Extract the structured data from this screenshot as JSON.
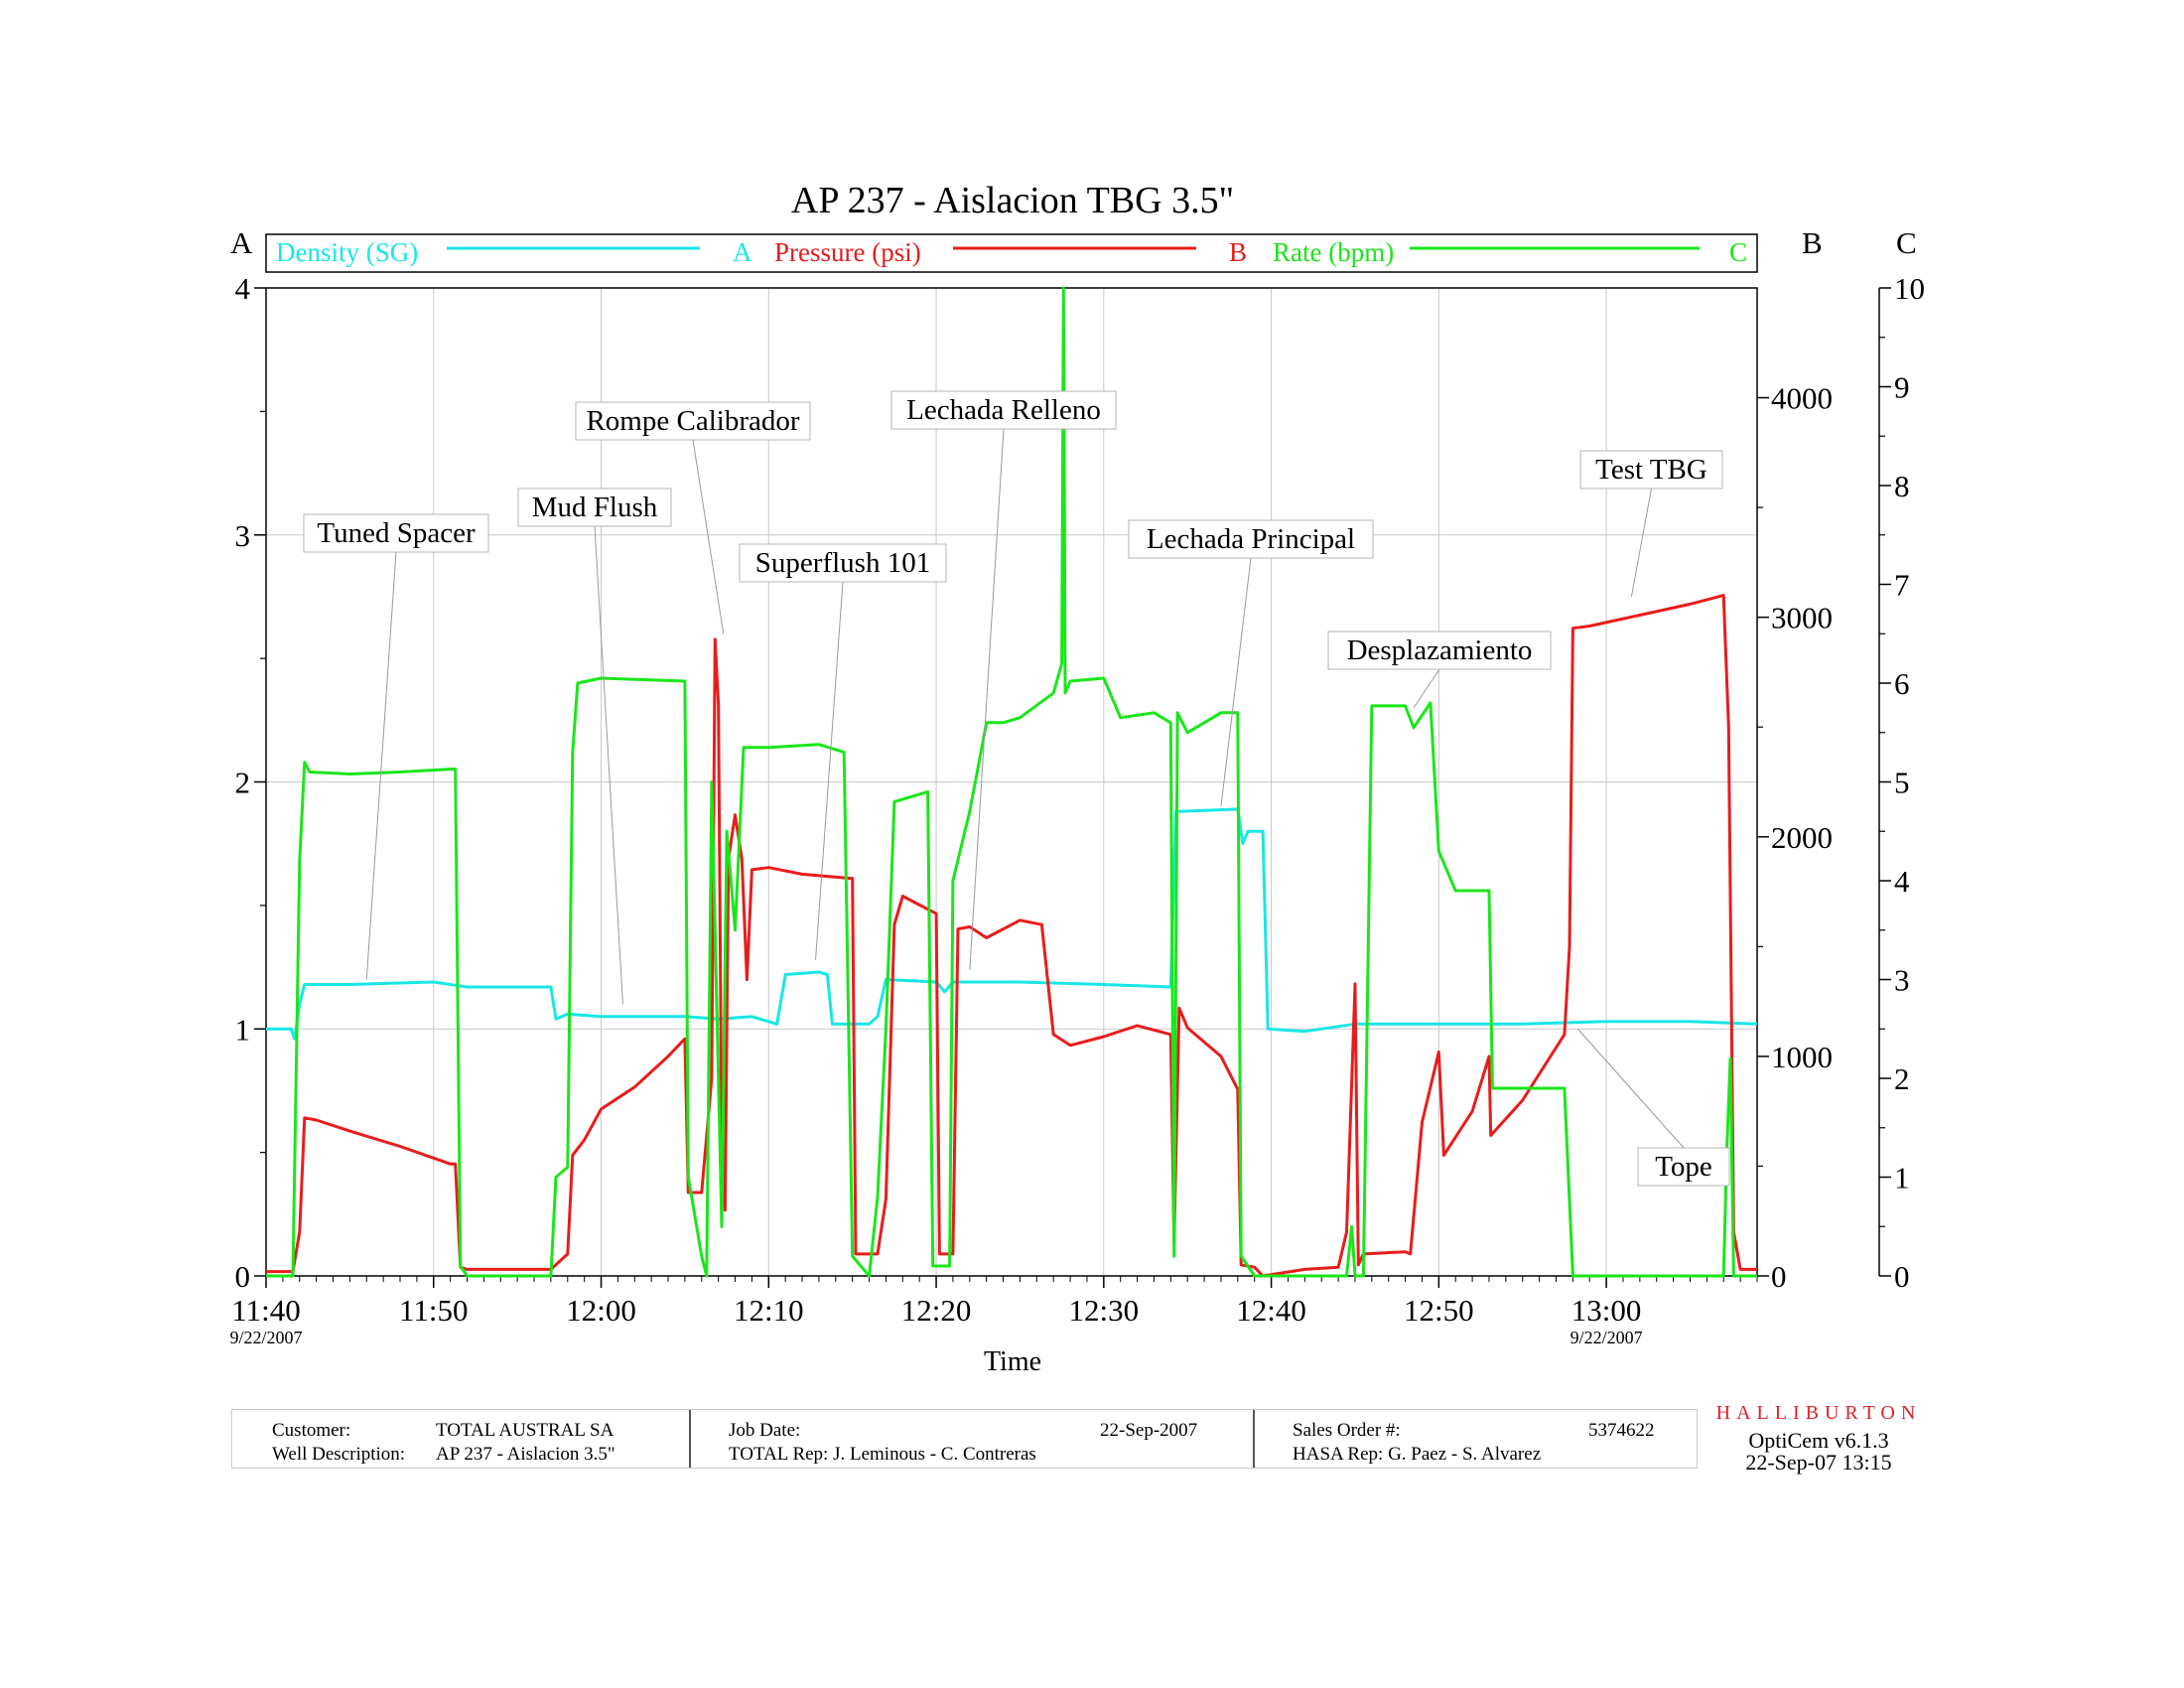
{
  "chart_data": {
    "type": "line",
    "title": "AP 237 - Aislacion TBG 3.5\"",
    "xlabel": "Time",
    "x_ticks": [
      "11:40",
      "11:50",
      "12:00",
      "12:10",
      "12:20",
      "12:30",
      "12:40",
      "12:50",
      "13:00"
    ],
    "x_date_labels": [
      {
        "at": "11:40",
        "text": "9/22/2007"
      },
      {
        "at": "13:00",
        "text": "9/22/2007"
      }
    ],
    "xlim": [
      "11:40",
      "13:09"
    ],
    "axes": {
      "A": {
        "label": "A",
        "range": [
          0,
          4
        ],
        "ticks": [
          0,
          1,
          2,
          3,
          4
        ],
        "side": "left"
      },
      "B": {
        "label": "B",
        "range": [
          0,
          4500
        ],
        "ticks": [
          0,
          1000,
          2000,
          3000,
          4000
        ],
        "side": "right"
      },
      "C": {
        "label": "C",
        "range": [
          0,
          10
        ],
        "ticks": [
          0,
          1,
          2,
          3,
          4,
          5,
          6,
          7,
          8,
          9,
          10
        ],
        "side": "right"
      }
    },
    "legend_position": "top",
    "grid": true,
    "series": [
      {
        "name": "Density (SG)",
        "axis": "A",
        "axis_label": "A",
        "color": "#19e6e6",
        "points": [
          [
            "11:40",
            1.0
          ],
          [
            "11:41.5",
            1.0
          ],
          [
            "11:41.7",
            0.96
          ],
          [
            "11:42",
            1.1
          ],
          [
            "11:42.3",
            1.18
          ],
          [
            "11:45",
            1.18
          ],
          [
            "11:50",
            1.19
          ],
          [
            "11:51",
            1.18
          ],
          [
            "11:52",
            1.17
          ],
          [
            "11:56",
            1.17
          ],
          [
            "11:57",
            1.17
          ],
          [
            "11:57.3",
            1.04
          ],
          [
            "11:58",
            1.06
          ],
          [
            "12:00",
            1.05
          ],
          [
            "12:05",
            1.05
          ],
          [
            "12:07",
            1.04
          ],
          [
            "12:09",
            1.05
          ],
          [
            "12:10.5",
            1.02
          ],
          [
            "12:11",
            1.22
          ],
          [
            "12:13",
            1.23
          ],
          [
            "12:13.5",
            1.22
          ],
          [
            "12:13.8",
            1.02
          ],
          [
            "12:16",
            1.02
          ],
          [
            "12:16.5",
            1.05
          ],
          [
            "12:17",
            1.2
          ],
          [
            "12:20",
            1.19
          ],
          [
            "12:20.5",
            1.15
          ],
          [
            "12:21",
            1.19
          ],
          [
            "12:25",
            1.19
          ],
          [
            "12:30",
            1.18
          ],
          [
            "12:34",
            1.17
          ],
          [
            "12:34.3",
            1.88
          ],
          [
            "12:38",
            1.89
          ],
          [
            "12:38.3",
            1.75
          ],
          [
            "12:38.6",
            1.8
          ],
          [
            "12:39.5",
            1.8
          ],
          [
            "12:39.8",
            1.0
          ],
          [
            "12:42",
            0.99
          ],
          [
            "12:45",
            1.02
          ],
          [
            "12:50",
            1.02
          ],
          [
            "12:55",
            1.02
          ],
          [
            "13:00",
            1.03
          ],
          [
            "13:05",
            1.03
          ],
          [
            "13:09",
            1.02
          ]
        ]
      },
      {
        "name": "Pressure (psi)",
        "axis": "B",
        "axis_label": "B",
        "color": "#e81c1c",
        "points": [
          [
            "11:40",
            20
          ],
          [
            "11:41.6",
            20
          ],
          [
            "11:42",
            200
          ],
          [
            "11:42.3",
            720
          ],
          [
            "11:43",
            710
          ],
          [
            "11:45",
            660
          ],
          [
            "11:48",
            590
          ],
          [
            "11:51",
            510
          ],
          [
            "11:51.3",
            510
          ],
          [
            "11:51.6",
            40
          ],
          [
            "11:52",
            30
          ],
          [
            "11:57",
            30
          ],
          [
            "11:58",
            100
          ],
          [
            "11:58.3",
            550
          ],
          [
            "11:59",
            620
          ],
          [
            "12:00",
            760
          ],
          [
            "12:02",
            860
          ],
          [
            "12:04",
            1000
          ],
          [
            "12:05",
            1080
          ],
          [
            "12:05.2",
            380
          ],
          [
            "12:06",
            380
          ],
          [
            "12:06.6",
            900
          ],
          [
            "12:06.8",
            2900
          ],
          [
            "12:07",
            2600
          ],
          [
            "12:07.2",
            600
          ],
          [
            "12:07.4",
            300
          ],
          [
            "12:07.6",
            1900
          ],
          [
            "12:08",
            2100
          ],
          [
            "12:08.4",
            1900
          ],
          [
            "12:08.7",
            1350
          ],
          [
            "12:09",
            1850
          ],
          [
            "12:10",
            1860
          ],
          [
            "12:12",
            1830
          ],
          [
            "12:15",
            1810
          ],
          [
            "12:15.2",
            100
          ],
          [
            "12:16.5",
            100
          ],
          [
            "12:17",
            350
          ],
          [
            "12:17.5",
            1600
          ],
          [
            "12:18",
            1730
          ],
          [
            "12:20",
            1650
          ],
          [
            "12:20.2",
            100
          ],
          [
            "12:21",
            100
          ],
          [
            "12:21.3",
            1580
          ],
          [
            "12:22",
            1590
          ],
          [
            "12:23",
            1540
          ],
          [
            "12:25",
            1620
          ],
          [
            "12:26.3",
            1600
          ],
          [
            "12:27",
            1100
          ],
          [
            "12:28",
            1050
          ],
          [
            "12:30",
            1090
          ],
          [
            "12:32",
            1140
          ],
          [
            "12:34",
            1100
          ],
          [
            "12:34.2",
            150
          ],
          [
            "12:34.5",
            1220
          ],
          [
            "12:35",
            1130
          ],
          [
            "12:37",
            1000
          ],
          [
            "12:38",
            850
          ],
          [
            "12:38.2",
            50
          ],
          [
            "12:39",
            40
          ],
          [
            "12:39.5",
            0
          ],
          [
            "12:42",
            30
          ],
          [
            "12:44",
            40
          ],
          [
            "12:44.5",
            200
          ],
          [
            "12:45",
            1330
          ],
          [
            "12:45.2",
            50
          ],
          [
            "12:45.5",
            100
          ],
          [
            "12:48",
            110
          ],
          [
            "12:48.3",
            100
          ],
          [
            "12:49",
            700
          ],
          [
            "12:50",
            1020
          ],
          [
            "12:50.3",
            550
          ],
          [
            "12:52",
            750
          ],
          [
            "12:53",
            1000
          ],
          [
            "12:53.1",
            640
          ],
          [
            "12:55",
            800
          ],
          [
            "12:57.5",
            1100
          ],
          [
            "12:57.8",
            1500
          ],
          [
            "12:58",
            2950
          ],
          [
            "12:59",
            2960
          ],
          [
            "13:02",
            3010
          ],
          [
            "13:05",
            3060
          ],
          [
            "13:07",
            3100
          ],
          [
            "13:07.3",
            2500
          ],
          [
            "13:07.6",
            200
          ],
          [
            "13:08",
            30
          ],
          [
            "13:09",
            30
          ]
        ]
      },
      {
        "name": "Rate (bpm)",
        "axis": "C",
        "axis_label": "C",
        "color": "#1ae61a",
        "points": [
          [
            "11:40",
            0
          ],
          [
            "11:41.6",
            0
          ],
          [
            "11:42",
            4.2
          ],
          [
            "11:42.3",
            5.2
          ],
          [
            "11:42.6",
            5.1
          ],
          [
            "11:45",
            5.08
          ],
          [
            "11:48",
            5.1
          ],
          [
            "11:51",
            5.13
          ],
          [
            "11:51.3",
            5.13
          ],
          [
            "11:51.6",
            0.1
          ],
          [
            "11:52",
            0
          ],
          [
            "11:57",
            0
          ],
          [
            "11:57.3",
            1.0
          ],
          [
            "11:58",
            1.1
          ],
          [
            "11:58.3",
            5.3
          ],
          [
            "11:58.6",
            6.0
          ],
          [
            "12:00",
            6.05
          ],
          [
            "12:05",
            6.02
          ],
          [
            "12:05.2",
            1.0
          ],
          [
            "12:06",
            0.2
          ],
          [
            "12:06.3",
            0
          ],
          [
            "12:06.6",
            5.0
          ],
          [
            "12:07",
            2.0
          ],
          [
            "12:07.2",
            0.5
          ],
          [
            "12:07.5",
            4.5
          ],
          [
            "12:08",
            3.5
          ],
          [
            "12:08.5",
            5.35
          ],
          [
            "12:10",
            5.35
          ],
          [
            "12:13",
            5.38
          ],
          [
            "12:14.5",
            5.3
          ],
          [
            "12:15",
            0.2
          ],
          [
            "12:16",
            0
          ],
          [
            "12:16.5",
            0.8
          ],
          [
            "12:17",
            2.5
          ],
          [
            "12:17.5",
            4.8
          ],
          [
            "12:19.5",
            4.9
          ],
          [
            "12:19.8",
            0.1
          ],
          [
            "12:20.8",
            0.1
          ],
          [
            "12:21",
            4.0
          ],
          [
            "12:22",
            4.7
          ],
          [
            "12:23",
            5.6
          ],
          [
            "12:24",
            5.6
          ],
          [
            "12:25",
            5.65
          ],
          [
            "12:27",
            5.9
          ],
          [
            "12:27.5",
            6.2
          ],
          [
            "12:27.6",
            10.0
          ],
          [
            "12:27.7",
            5.9
          ],
          [
            "12:28",
            6.02
          ],
          [
            "12:30",
            6.05
          ],
          [
            "12:31",
            5.65
          ],
          [
            "12:33",
            5.7
          ],
          [
            "12:34",
            5.6
          ],
          [
            "12:34.2",
            0.2
          ],
          [
            "12:34.4",
            5.7
          ],
          [
            "12:35",
            5.5
          ],
          [
            "12:37",
            5.7
          ],
          [
            "12:38",
            5.7
          ],
          [
            "12:38.2",
            0.2
          ],
          [
            "12:39",
            0
          ],
          [
            "12:44.5",
            0
          ],
          [
            "12:44.8",
            0.5
          ],
          [
            "12:45",
            0
          ],
          [
            "12:45.5",
            0
          ],
          [
            "12:46",
            5.77
          ],
          [
            "12:48",
            5.77
          ],
          [
            "12:48.5",
            5.55
          ],
          [
            "12:49.5",
            5.8
          ],
          [
            "12:50",
            4.3
          ],
          [
            "12:51",
            3.9
          ],
          [
            "12:53",
            3.9
          ],
          [
            "12:53.2",
            1.9
          ],
          [
            "12:55",
            1.9
          ],
          [
            "12:57.5",
            1.9
          ],
          [
            "12:58",
            0
          ],
          [
            "13:07",
            0
          ],
          [
            "13:07.2",
            1.3
          ],
          [
            "13:07.4",
            2.2
          ],
          [
            "13:07.6",
            0
          ],
          [
            "13:09",
            0
          ]
        ]
      }
    ],
    "annotations": [
      {
        "text": "Tuned Spacer",
        "at": "11:46",
        "value_A": 1.2
      },
      {
        "text": "Mud Flush",
        "at": "12:01.3",
        "value_A": 1.1
      },
      {
        "text": "Rompe Calibrador",
        "at": "12:07.3",
        "value_A": 2.6
      },
      {
        "text": "Superflush 101",
        "at": "12:12.8",
        "value_A": 1.28
      },
      {
        "text": "Lechada Relleno",
        "at": "12:22",
        "value_A": 1.24
      },
      {
        "text": "Lechada Principal",
        "at": "12:37",
        "value_A": 1.9
      },
      {
        "text": "Desplazamiento",
        "at": "12:48.5",
        "value_A": 2.3
      },
      {
        "text": "Test TBG",
        "at": "13:01.5",
        "value_A": 2.75
      },
      {
        "text": "Tope",
        "at": "12:58.3",
        "value_A": 1.0
      }
    ]
  },
  "footer": {
    "customer_label": "Customer:",
    "customer_value": "TOTAL AUSTRAL SA",
    "well_label": "Well Description:",
    "well_value": "AP 237 - Aislacion 3.5\"",
    "job_date_label": "Job Date:",
    "job_date_value": "22-Sep-2007",
    "total_rep": "TOTAL Rep: J. Leminous - C. Contreras",
    "sales_order_label": "Sales Order #:",
    "sales_order_value": "5374622",
    "hasa_rep": "HASA Rep: G. Paez - S. Alvarez"
  },
  "brand": "HALLIBURTON",
  "software": "OptiCem v6.1.3",
  "printed": "22-Sep-07 13:15"
}
